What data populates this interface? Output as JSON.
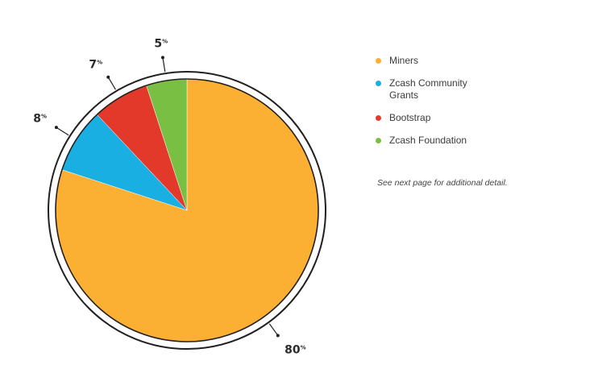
{
  "chart_data": {
    "type": "pie",
    "slices": [
      {
        "label": "Miners",
        "value": 80,
        "display": "80",
        "unit": "%",
        "color": "#FBB034"
      },
      {
        "label": "Zcash Community Grants",
        "value": 8,
        "display": "8",
        "unit": "%",
        "color": "#1AAFE3"
      },
      {
        "label": "Bootstrap",
        "value": 7,
        "display": "7",
        "unit": "%",
        "color": "#E3392A"
      },
      {
        "label": "Zcash Foundation",
        "value": 5,
        "display": "5",
        "unit": "%",
        "color": "#79BF43"
      }
    ],
    "legend_placement": "right",
    "title": "",
    "note": "See next page for additional detail."
  },
  "legend": {
    "items": [
      {
        "label": "Miners",
        "color": "#FBB034"
      },
      {
        "label": "Zcash Community Grants",
        "color": "#1AAFE3"
      },
      {
        "label": "Bootstrap",
        "color": "#E3392A"
      },
      {
        "label": "Zcash Foundation",
        "color": "#79BF43"
      }
    ]
  }
}
